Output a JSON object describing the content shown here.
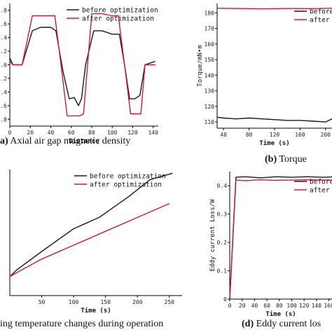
{
  "colors": {
    "before": "#1a1a1a",
    "after": "#d8163a"
  },
  "chart_data": [
    {
      "type": "line",
      "xlabel": "Distance",
      "ylabel": "",
      "xlim": [
        0,
        145
      ],
      "ylim": [
        -0.9,
        0.9
      ],
      "x_ticks": [
        0,
        20,
        40,
        60,
        80,
        100,
        120,
        140
      ],
      "y_ticks": [
        0.8,
        0.6,
        0.4,
        0.2,
        0.0,
        -0.2,
        -0.4,
        -0.6,
        -0.8
      ],
      "y_tick_labels": [
        ".8",
        ".6",
        ".4",
        ".2",
        ".0",
        ".2",
        ".4",
        ".6",
        ".8"
      ],
      "legend_position": "top-right",
      "caption_letter": "a)",
      "caption_text": " Axial air gap magnetic density",
      "series": [
        {
          "name": "before optimization",
          "color": "#1a1a1a",
          "x": [
            0,
            3,
            12,
            22,
            30,
            40,
            45,
            52,
            58,
            63,
            67,
            70,
            74,
            82,
            90,
            100,
            107,
            112,
            117,
            122,
            127,
            132,
            142
          ],
          "y": [
            0.1,
            0.0,
            0.0,
            0.5,
            0.55,
            0.55,
            0.5,
            -0.1,
            -0.5,
            -0.48,
            -0.6,
            -0.5,
            0.0,
            0.5,
            0.5,
            0.45,
            0.45,
            0.0,
            -0.5,
            -0.5,
            -0.45,
            0.0,
            0.05
          ]
        },
        {
          "name": "after optimization",
          "color": "#d8163a",
          "x": [
            0,
            3,
            12,
            22,
            30,
            40,
            44,
            50,
            56,
            60,
            68,
            72,
            80,
            90,
            100,
            106,
            112,
            118,
            128,
            132,
            142
          ],
          "y": [
            0.05,
            0.0,
            0.0,
            0.72,
            0.72,
            0.72,
            0.72,
            0.0,
            -0.75,
            -0.75,
            -0.75,
            -0.72,
            0.75,
            0.75,
            0.72,
            0.72,
            0.0,
            -0.72,
            -0.72,
            0.0,
            0.0
          ]
        }
      ]
    },
    {
      "type": "line",
      "xlabel": "Time (s)",
      "ylabel": "Torque/mN•m",
      "xlim": [
        30,
        210
      ],
      "ylim": [
        106,
        186
      ],
      "x_ticks": [
        40,
        80,
        120,
        160,
        200
      ],
      "y_ticks": [
        110,
        120,
        130,
        140,
        150,
        160,
        170,
        180
      ],
      "legend_position": "top-right",
      "caption_letter": "(b)",
      "caption_text": " Torque",
      "series": [
        {
          "name": "before optimization",
          "color": "#1a1a1a",
          "x": [
            30,
            40,
            60,
            80,
            100,
            120,
            140,
            160,
            180,
            200,
            210
          ],
          "y": [
            113,
            112.5,
            112,
            112.5,
            112,
            111.5,
            111,
            111,
            110.5,
            110,
            112
          ]
        },
        {
          "name": "after optimization",
          "color": "#d8163a",
          "x": [
            30,
            60,
            100,
            140,
            180,
            210
          ],
          "y": [
            183,
            182.8,
            182.6,
            182.8,
            182.7,
            183
          ]
        }
      ]
    },
    {
      "type": "line",
      "xlabel": "Time (s)",
      "ylabel": "",
      "xlim": [
        0,
        270
      ],
      "ylim": [
        0,
        10
      ],
      "x_ticks": [
        50,
        100,
        150,
        200,
        250
      ],
      "legend_position": "top-right",
      "caption_letter": "",
      "caption_text": "ing temperature changes during operation",
      "series": [
        {
          "name": "before optimization",
          "color": "#1a1a1a",
          "x": [
            0,
            10,
            50,
            100,
            140,
            185,
            220,
            255
          ],
          "y": [
            1.5,
            2.0,
            3.5,
            5.3,
            6.2,
            7.8,
            9.2,
            9.7
          ]
        },
        {
          "name": "after optimization",
          "color": "#d8163a",
          "x": [
            0,
            10,
            50,
            100,
            150,
            200,
            250
          ],
          "y": [
            1.5,
            1.8,
            2.9,
            4.0,
            5.1,
            6.2,
            7.3
          ]
        }
      ]
    },
    {
      "type": "line",
      "xlabel": "Time (s)",
      "ylabel": "Eddy current Loss/W",
      "xlim": [
        0,
        165
      ],
      "ylim": [
        0,
        0.45
      ],
      "x_ticks": [
        0,
        20,
        40,
        60,
        80,
        100,
        120,
        140,
        160
      ],
      "y_ticks": [
        0.0,
        0.1,
        0.2,
        0.3,
        0.4
      ],
      "legend_position": "top-right",
      "caption_letter": "(d)",
      "caption_text": " Eddy current los",
      "series": [
        {
          "name": "before optimization",
          "color": "#1a1a1a",
          "x": [
            0,
            10,
            25,
            50,
            75,
            100,
            125,
            150,
            165
          ],
          "y": [
            0.0,
            0.43,
            0.432,
            0.428,
            0.432,
            0.43,
            0.432,
            0.43,
            0.431
          ]
        },
        {
          "name": "after optimization",
          "color": "#d8163a",
          "x": [
            0,
            10,
            25,
            50,
            75,
            100,
            125,
            150,
            165
          ],
          "y": [
            0.0,
            0.42,
            0.418,
            0.421,
            0.419,
            0.42,
            0.421,
            0.42,
            0.42
          ]
        }
      ]
    }
  ]
}
